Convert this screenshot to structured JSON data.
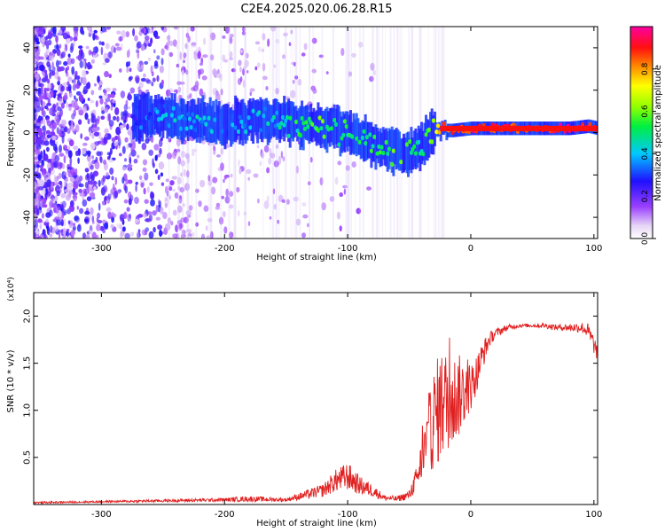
{
  "title": "C2E4.2025.020.06.28.R15",
  "colors": {
    "snr_line": "#e02020",
    "ridge_strong": "#ff3030",
    "ridge_mid": "#20c0d0",
    "ridge_core": "#2030e0",
    "noise": "#7020e0"
  },
  "chart_data": [
    {
      "type": "heatmap",
      "xlabel": "Height of straight line (km)",
      "ylabel": "Frequency (Hz)",
      "xlim": [
        -355,
        103
      ],
      "ylim": [
        -50,
        50
      ],
      "xticks": [
        -300,
        -200,
        -100,
        0,
        100
      ],
      "yticks": [
        -40,
        -20,
        0,
        20,
        40
      ],
      "xtick_labels": [
        "-300",
        "-200",
        "-100",
        "0",
        "100"
      ],
      "ytick_labels": [
        "-40",
        "-20",
        "0",
        "20",
        "40"
      ],
      "colorbar": {
        "label": "Normalized spectral amplitude",
        "range": [
          0,
          1
        ],
        "ticks": [
          0,
          0.2,
          0.4,
          0.6,
          0.8
        ],
        "tick_labels": [
          "0.0",
          "0.2",
          "0.4",
          "0.6",
          "0.8"
        ],
        "colormap": "rainbow (white-violet-blue-cyan-green-yellow-red-magenta)"
      },
      "ridge": {
        "x": [
          -275,
          -260,
          -240,
          -220,
          -200,
          -180,
          -160,
          -140,
          -120,
          -100,
          -80,
          -65,
          -50,
          -40,
          -32,
          -25,
          -15,
          0,
          20,
          40,
          60,
          80,
          95,
          103
        ],
        "freq": [
          6,
          8,
          7,
          5,
          4,
          6,
          6,
          4,
          3,
          0,
          -5,
          -8,
          -10,
          -6,
          0,
          1,
          1,
          2,
          2,
          2,
          2,
          2,
          3,
          2
        ],
        "amplitude": [
          0.25,
          0.35,
          0.4,
          0.4,
          0.35,
          0.4,
          0.4,
          0.5,
          0.55,
          0.5,
          0.5,
          0.55,
          0.5,
          0.45,
          0.6,
          0.8,
          0.85,
          0.9,
          0.9,
          0.9,
          0.9,
          0.95,
          0.95,
          0.9
        ]
      }
    },
    {
      "type": "line",
      "xlabel": "Height of straight line (km)",
      "ylabel": "SNR (10 * v/v)",
      "y_multiplier": "(x10⁴)",
      "xlim": [
        -355,
        103
      ],
      "ylim": [
        0,
        2.25
      ],
      "xticks": [
        -300,
        -200,
        -100,
        0,
        100
      ],
      "yticks": [
        0.5,
        1.0,
        1.5,
        2.0
      ],
      "xtick_labels": [
        "-300",
        "-200",
        "-100",
        "0",
        "100"
      ],
      "ytick_labels": [
        "0.5",
        "1.0",
        "1.5",
        "2.0"
      ],
      "series": [
        {
          "x": [
            -355,
            -300,
            -250,
            -200,
            -180,
            -150,
            -120,
            -110,
            -100,
            -90,
            -80,
            -70,
            -60,
            -50,
            -45,
            -40,
            -35,
            -30,
            -25,
            -20,
            -15,
            -10,
            -5,
            0,
            5,
            10,
            15,
            20,
            30,
            40,
            50,
            60,
            70,
            80,
            90,
            95,
            100,
            103
          ],
          "y": [
            0.02,
            0.03,
            0.04,
            0.05,
            0.06,
            0.05,
            0.15,
            0.25,
            0.3,
            0.2,
            0.15,
            0.07,
            0.06,
            0.1,
            0.25,
            0.45,
            0.7,
            0.9,
            1.05,
            1.1,
            1.1,
            1.15,
            1.2,
            1.25,
            1.4,
            1.6,
            1.75,
            1.82,
            1.88,
            1.9,
            1.9,
            1.9,
            1.88,
            1.88,
            1.88,
            1.85,
            1.7,
            1.6
          ],
          "noise": [
            0.01,
            0.01,
            0.015,
            0.02,
            0.03,
            0.02,
            0.07,
            0.12,
            0.15,
            0.1,
            0.07,
            0.03,
            0.03,
            0.05,
            0.12,
            0.22,
            0.35,
            0.55,
            0.6,
            0.55,
            0.5,
            0.45,
            0.35,
            0.25,
            0.2,
            0.15,
            0.08,
            0.05,
            0.03,
            0.02,
            0.02,
            0.03,
            0.03,
            0.04,
            0.06,
            0.08,
            0.1,
            0.08
          ]
        }
      ]
    }
  ]
}
